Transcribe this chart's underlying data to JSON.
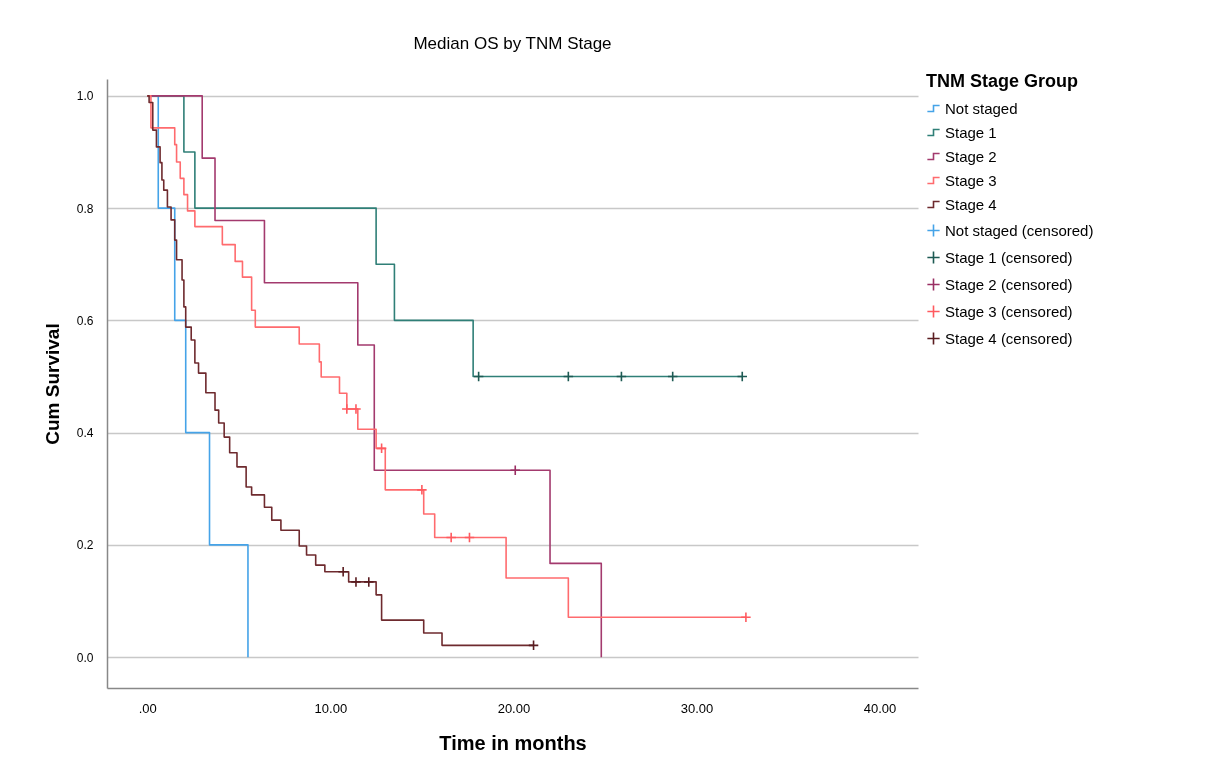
{
  "chart_data": {
    "type": "step",
    "title": "Median OS by TNM Stage",
    "xlabel": "Time in months",
    "ylabel": "Cum Survival",
    "legend_title": "TNM Stage Group",
    "legend": "right",
    "grid": "y",
    "xlim": [
      -2.2,
      42.1
    ],
    "ylim": [
      -0.055,
      1.03
    ],
    "xticks": [
      {
        "value": 0,
        "label": ".00"
      },
      {
        "value": 10,
        "label": "10.00"
      },
      {
        "value": 20,
        "label": "20.00"
      },
      {
        "value": 30,
        "label": "30.00"
      },
      {
        "value": 40,
        "label": "40.00"
      }
    ],
    "yticks": [
      {
        "value": 0,
        "label": "0.0"
      },
      {
        "value": 0.2,
        "label": "0.2"
      },
      {
        "value": 0.4,
        "label": "0.4"
      },
      {
        "value": 0.6,
        "label": "0.6"
      },
      {
        "value": 0.8,
        "label": "0.8"
      },
      {
        "value": 1,
        "label": "1.0"
      }
    ],
    "series": [
      {
        "name": "Not staged",
        "type": "step",
        "color": "#45a3e8",
        "x": [
          0,
          0.6,
          1.5,
          2.1,
          3.4,
          5.5
        ],
        "values": [
          1,
          0.8,
          0.6,
          0.4,
          0.2,
          0
        ]
      },
      {
        "name": "Stage 1",
        "type": "step",
        "color": "#2f7f77",
        "x": [
          0,
          2.0,
          2.6,
          12.5,
          13.5,
          17.8,
          32.5
        ],
        "values": [
          1,
          0.9,
          0.8,
          0.7,
          0.6,
          0.5,
          0.5
        ]
      },
      {
        "name": "Stage 2",
        "type": "step",
        "color": "#a33a6e",
        "x": [
          0,
          3.0,
          3.7,
          6.4,
          11.5,
          12.4,
          22.0,
          24.8
        ],
        "values": [
          1,
          0.889,
          0.778,
          0.667,
          0.556,
          0.333,
          0.167,
          0
        ]
      },
      {
        "name": "Stage 3",
        "type": "step",
        "color": "#ff6b6e",
        "x": [
          0,
          0.2,
          1.5,
          1.6,
          1.8,
          2.0,
          2.2,
          2.6,
          4.1,
          4.8,
          5.2,
          5.7,
          5.9,
          8.3,
          9.4,
          9.5,
          10.5,
          10.9,
          11.5,
          12.5,
          13.0,
          15.1,
          15.7,
          19.6,
          23.0,
          32.7
        ],
        "values": [
          1,
          0.943,
          0.913,
          0.882,
          0.853,
          0.824,
          0.795,
          0.767,
          0.735,
          0.705,
          0.677,
          0.618,
          0.588,
          0.558,
          0.526,
          0.499,
          0.47,
          0.442,
          0.406,
          0.372,
          0.298,
          0.255,
          0.213,
          0.141,
          0.071,
          0.071
        ]
      },
      {
        "name": "Stage 4",
        "type": "step",
        "color": "#6e2a2e",
        "x": [
          0,
          0.1,
          0.3,
          0.5,
          0.7,
          0.8,
          0.9,
          1.1,
          1.3,
          1.5,
          1.6,
          1.9,
          2.0,
          2.1,
          2.4,
          2.6,
          2.8,
          3.2,
          3.7,
          3.9,
          4.2,
          4.5,
          4.9,
          5.4,
          5.7,
          6.4,
          6.8,
          7.3,
          8.3,
          8.7,
          9.2,
          9.7,
          11.0,
          12.5,
          12.8,
          15.1,
          16.1,
          21.1
        ],
        "values": [
          1,
          0.988,
          0.939,
          0.909,
          0.881,
          0.85,
          0.832,
          0.802,
          0.779,
          0.743,
          0.708,
          0.672,
          0.624,
          0.588,
          0.565,
          0.524,
          0.506,
          0.471,
          0.44,
          0.417,
          0.392,
          0.364,
          0.339,
          0.303,
          0.289,
          0.267,
          0.244,
          0.226,
          0.198,
          0.182,
          0.164,
          0.152,
          0.134,
          0.111,
          0.066,
          0.043,
          0.021,
          0.021
        ]
      },
      {
        "name": "Not staged (censored)",
        "type": "scatter",
        "marker": "cross",
        "color": "#45a3e8"
      },
      {
        "name": "Stage 1 (censored)",
        "type": "scatter",
        "marker": "cross",
        "color": "#1d5a53",
        "x": [
          18.1,
          23.0,
          25.9,
          28.7,
          32.5
        ],
        "values": [
          0.5,
          0.5,
          0.5,
          0.5,
          0.5
        ]
      },
      {
        "name": "Stage 2 (censored)",
        "type": "scatter",
        "marker": "cross",
        "color": "#9a2f63",
        "x": [
          20.1
        ],
        "values": [
          0.333
        ]
      },
      {
        "name": "Stage 3 (censored)",
        "type": "scatter",
        "marker": "cross",
        "color": "#ff5a5f",
        "x": [
          10.9,
          11.4,
          12.8,
          15.0,
          16.6,
          17.6,
          32.7
        ],
        "values": [
          0.442,
          0.442,
          0.372,
          0.298,
          0.213,
          0.213,
          0.071
        ]
      },
      {
        "name": "Stage 4 (censored)",
        "type": "scatter",
        "marker": "cross",
        "color": "#5a1c20",
        "x": [
          10.7,
          11.4,
          12.1,
          21.1
        ],
        "values": [
          0.152,
          0.134,
          0.134,
          0.021
        ]
      }
    ]
  }
}
